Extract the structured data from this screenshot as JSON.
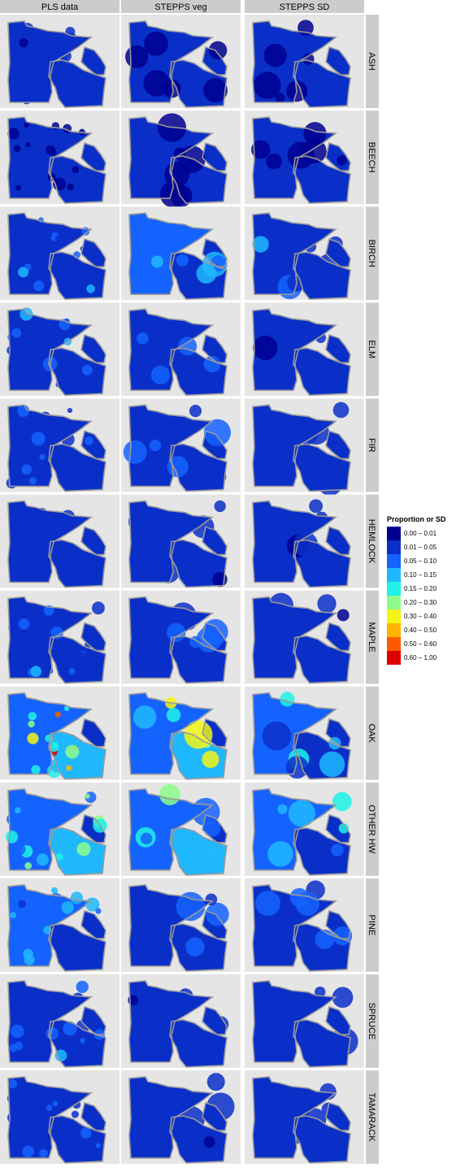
{
  "chart_data": {
    "type": "heatmap",
    "subtype": "faceted map grid",
    "columns": [
      "PLS data",
      "STEPPS veg",
      "STEPPS SD"
    ],
    "rows": [
      "ASH",
      "BEECH",
      "BIRCH",
      "ELM",
      "FIR",
      "HEMLOCK",
      "MAPLE",
      "OAK",
      "OTHER HW",
      "PINE",
      "SPRUCE",
      "TAMARACK"
    ],
    "legend": {
      "title": "Proportion or SD",
      "placement": "right",
      "bins": [
        {
          "label": "0.00 – 0.01",
          "color": "#00008f"
        },
        {
          "label": "0.01 – 0.05",
          "color": "#0a2fc9"
        },
        {
          "label": "0.05 – 0.10",
          "color": "#1563ff"
        },
        {
          "label": "0.10 – 0.15",
          "color": "#1fb8ff"
        },
        {
          "label": "0.15 – 0.20",
          "color": "#1ff2e6"
        },
        {
          "label": "0.20 – 0.30",
          "color": "#8dfc8c"
        },
        {
          "label": "0.30 – 0.40",
          "color": "#f2f516"
        },
        {
          "label": "0.40 – 0.50",
          "color": "#ffb300"
        },
        {
          "label": "0.50 – 0.60",
          "color": "#ff5a00"
        },
        {
          "label": "0.60 – 1.00",
          "color": "#dd0000"
        }
      ]
    },
    "panel_levels": [
      [
        1,
        0,
        0
      ],
      [
        0,
        0,
        0
      ],
      [
        2,
        3,
        2
      ],
      [
        2,
        2,
        1
      ],
      [
        2,
        2,
        1
      ],
      [
        1,
        1,
        1
      ],
      [
        2,
        2,
        1
      ],
      [
        7,
        5,
        3
      ],
      [
        4,
        4,
        3
      ],
      [
        3,
        2,
        2
      ],
      [
        2,
        1,
        1
      ],
      [
        2,
        1,
        1
      ]
    ],
    "grid": true
  }
}
